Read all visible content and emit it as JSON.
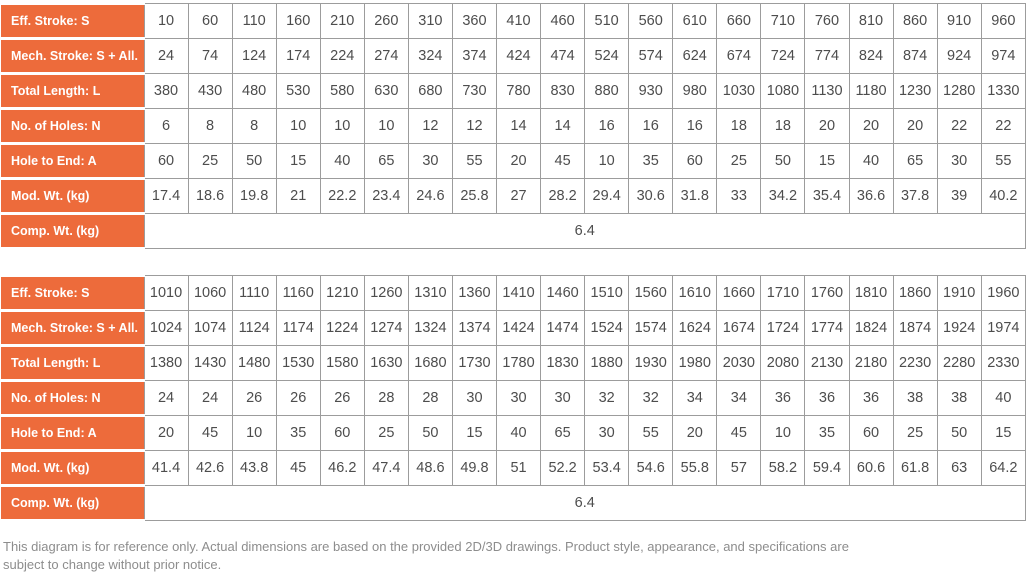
{
  "accent_color": "#ED6B3B",
  "grid_color": "#9C9C9C",
  "tables": [
    {
      "name": "stroke-spec-table-1",
      "rows": [
        {
          "label": "Eff. Stroke: S",
          "values": [
            10,
            60,
            110,
            160,
            210,
            260,
            310,
            360,
            410,
            460,
            510,
            560,
            610,
            660,
            710,
            760,
            810,
            860,
            910,
            960
          ]
        },
        {
          "label": "Mech. Stroke: S + All.",
          "values": [
            24,
            74,
            124,
            174,
            224,
            274,
            324,
            374,
            424,
            474,
            524,
            574,
            624,
            674,
            724,
            774,
            824,
            874,
            924,
            974
          ]
        },
        {
          "label": "Total Length: L",
          "values": [
            380,
            430,
            480,
            530,
            580,
            630,
            680,
            730,
            780,
            830,
            880,
            930,
            980,
            1030,
            1080,
            1130,
            1180,
            1230,
            1280,
            1330
          ]
        },
        {
          "label": "No. of Holes: N",
          "values": [
            6,
            8,
            8,
            10,
            10,
            10,
            12,
            12,
            14,
            14,
            16,
            16,
            16,
            18,
            18,
            20,
            20,
            20,
            22,
            22
          ]
        },
        {
          "label": "Hole to End: A",
          "values": [
            60,
            25,
            50,
            15,
            40,
            65,
            30,
            55,
            20,
            45,
            10,
            35,
            60,
            25,
            50,
            15,
            40,
            65,
            30,
            55
          ]
        },
        {
          "label": "Mod. Wt. (kg)",
          "values": [
            17.4,
            18.6,
            19.8,
            21,
            22.2,
            23.4,
            24.6,
            25.8,
            27,
            28.2,
            29.4,
            30.6,
            31.8,
            33,
            34.2,
            35.4,
            36.6,
            37.8,
            39,
            40.2
          ]
        },
        {
          "label": "Comp. Wt. (kg)",
          "span_value": "6.4"
        }
      ]
    },
    {
      "name": "stroke-spec-table-2",
      "rows": [
        {
          "label": "Eff. Stroke: S",
          "values": [
            1010,
            1060,
            1110,
            1160,
            1210,
            1260,
            1310,
            1360,
            1410,
            1460,
            1510,
            1560,
            1610,
            1660,
            1710,
            1760,
            1810,
            1860,
            1910,
            1960
          ]
        },
        {
          "label": "Mech. Stroke: S + All.",
          "values": [
            1024,
            1074,
            1124,
            1174,
            1224,
            1274,
            1324,
            1374,
            1424,
            1474,
            1524,
            1574,
            1624,
            1674,
            1724,
            1774,
            1824,
            1874,
            1924,
            1974
          ]
        },
        {
          "label": "Total Length: L",
          "values": [
            1380,
            1430,
            1480,
            1530,
            1580,
            1630,
            1680,
            1730,
            1780,
            1830,
            1880,
            1930,
            1980,
            2030,
            2080,
            2130,
            2180,
            2230,
            2280,
            2330
          ]
        },
        {
          "label": "No. of Holes: N",
          "values": [
            24,
            24,
            26,
            26,
            26,
            28,
            28,
            30,
            30,
            30,
            32,
            32,
            34,
            34,
            36,
            36,
            36,
            38,
            38,
            40
          ]
        },
        {
          "label": "Hole to End: A",
          "values": [
            20,
            45,
            10,
            35,
            60,
            25,
            50,
            15,
            40,
            65,
            30,
            55,
            20,
            45,
            10,
            35,
            60,
            25,
            50,
            15
          ]
        },
        {
          "label": "Mod. Wt. (kg)",
          "values": [
            41.4,
            42.6,
            43.8,
            45,
            46.2,
            47.4,
            48.6,
            49.8,
            51,
            52.2,
            53.4,
            54.6,
            55.8,
            57,
            58.2,
            59.4,
            60.6,
            61.8,
            63,
            64.2
          ]
        },
        {
          "label": "Comp. Wt. (kg)",
          "span_value": "6.4"
        }
      ]
    }
  ],
  "footer": {
    "disclaimer": "This diagram is for reference only. Actual dimensions are based on the provided 2D/3D drawings. Product style, appearance, and specifications are subject to change without prior notice."
  }
}
